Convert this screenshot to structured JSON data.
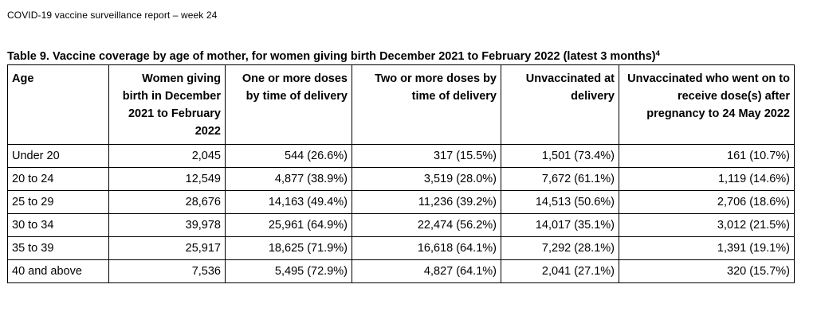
{
  "report_header": "COVID-19 vaccine surveillance report – week 24",
  "table": {
    "caption": "Table 9. Vaccine coverage by age of mother, for women giving birth December 2021 to February 2022 (latest 3 months)",
    "caption_footnote": "4",
    "columns": [
      "Age",
      "Women giving birth in December 2021 to February 2022",
      "One or more doses by time of delivery",
      "Two or more doses by time of delivery",
      "Unvaccinated at delivery",
      "Unvaccinated who went on to receive dose(s) after pregnancy to 24 May 2022"
    ],
    "rows": [
      [
        "Under 20",
        "2,045",
        "544 (26.6%)",
        "317 (15.5%)",
        "1,501 (73.4%)",
        "161 (10.7%)"
      ],
      [
        "20 to 24",
        "12,549",
        "4,877 (38.9%)",
        "3,519 (28.0%)",
        "7,672 (61.1%)",
        "1,119 (14.6%)"
      ],
      [
        "25 to 29",
        "28,676",
        "14,163 (49.4%)",
        "11,236 (39.2%)",
        "14,513 (50.6%)",
        "2,706 (18.6%)"
      ],
      [
        "30 to 34",
        "39,978",
        "25,961 (64.9%)",
        "22,474 (56.2%)",
        "14,017 (35.1%)",
        "3,012 (21.5%)"
      ],
      [
        "35 to 39",
        "25,917",
        "18,625 (71.9%)",
        "16,618 (64.1%)",
        "7,292 (28.1%)",
        "1,391 (19.1%)"
      ],
      [
        "40 and above",
        "7,536",
        "5,495 (72.9%)",
        "4,827 (64.1%)",
        "2,041 (27.1%)",
        "320 (15.7%)"
      ]
    ]
  }
}
